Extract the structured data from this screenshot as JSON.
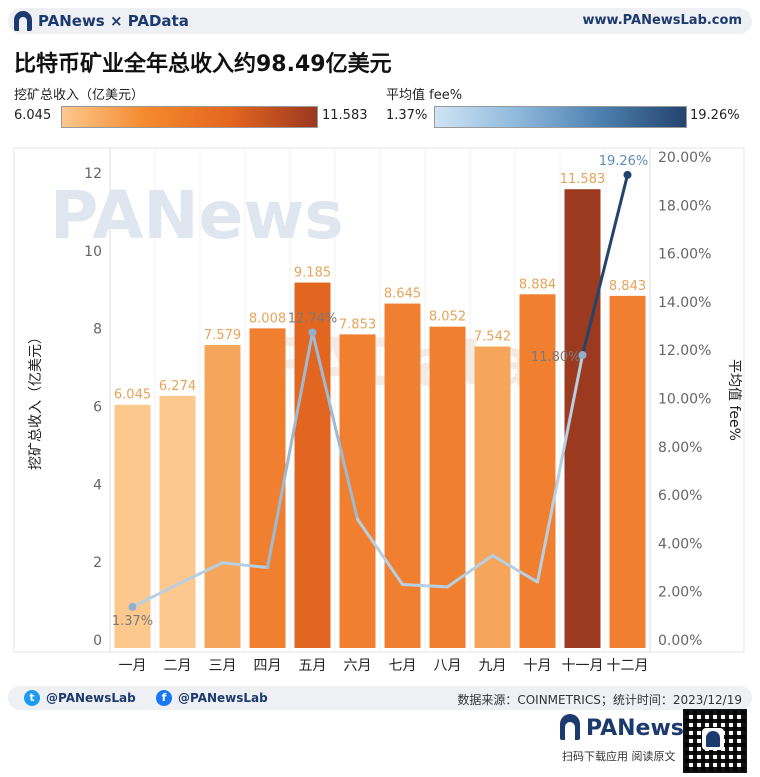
{
  "header": {
    "brand": "PANews × PAData",
    "site": "www.PANewsLab.com"
  },
  "title": "比特币矿业全年总收入约98.49亿美元",
  "legend_revenue": {
    "title": "挖矿总收入（亿美元）",
    "min": "6.045",
    "max": "11.583"
  },
  "legend_fee": {
    "title": "平均值 fee%",
    "min": "1.37%",
    "max": "19.26%"
  },
  "chart_data": {
    "type": "bar",
    "categories": [
      "一月",
      "二月",
      "三月",
      "四月",
      "五月",
      "六月",
      "七月",
      "八月",
      "九月",
      "十月",
      "十一月",
      "十二月"
    ],
    "series": [
      {
        "name": "挖矿总收入（亿美元）",
        "type": "bar",
        "values": [
          6.045,
          6.274,
          7.579,
          8.008,
          9.185,
          7.853,
          8.645,
          8.052,
          7.542,
          8.884,
          11.583,
          8.843
        ],
        "labels": [
          "6.045",
          "6.274",
          "7.579",
          "8.008",
          "9.185",
          "7.853",
          "8.645",
          "8.052",
          "7.542",
          "8.884",
          "11.583",
          "8.843"
        ]
      },
      {
        "name": "平均值 fee%",
        "type": "line",
        "values": [
          1.37,
          2.3,
          3.2,
          3.0,
          12.74,
          5.0,
          2.3,
          2.2,
          3.5,
          2.4,
          11.8,
          19.26
        ]
      }
    ],
    "line_labels": [
      {
        "index": 0,
        "text": "1.37%"
      },
      {
        "index": 4,
        "text": "12.74%"
      },
      {
        "index": 10,
        "text": "11.80%"
      },
      {
        "index": 11,
        "text": "19.26%"
      }
    ],
    "ylabel": "挖矿总收入（亿美元）",
    "y2label": "平均值 fee%",
    "ylim": [
      0,
      12.5
    ],
    "y2lim": [
      0,
      20.5
    ],
    "yticks": [
      "0",
      "2",
      "4",
      "6",
      "8",
      "10",
      "12"
    ],
    "y2ticks": [
      "0.00%",
      "2.00%",
      "4.00%",
      "6.00%",
      "8.00%",
      "10.00%",
      "12.00%",
      "14.00%",
      "16.00%",
      "18.00%",
      "20.00%"
    ],
    "colors": {
      "bar_light": "#fdc88e",
      "bar_mid": "#f08030",
      "bar_dark": "#e2661f",
      "bar_max": "#9c3a20",
      "line": "#b6cfe2",
      "line_high": "#23446d",
      "grid": "#e6e6e6"
    },
    "watermark": "PANews PAData"
  },
  "footer": {
    "twitter": "@PANewsLab",
    "facebook": "@PANewsLab",
    "source": "数据来源：COINMETRICS；统计时间：2023/12/19"
  },
  "promo": {
    "brand": "PANews",
    "sub": "扫码下载应用  阅读原文"
  }
}
